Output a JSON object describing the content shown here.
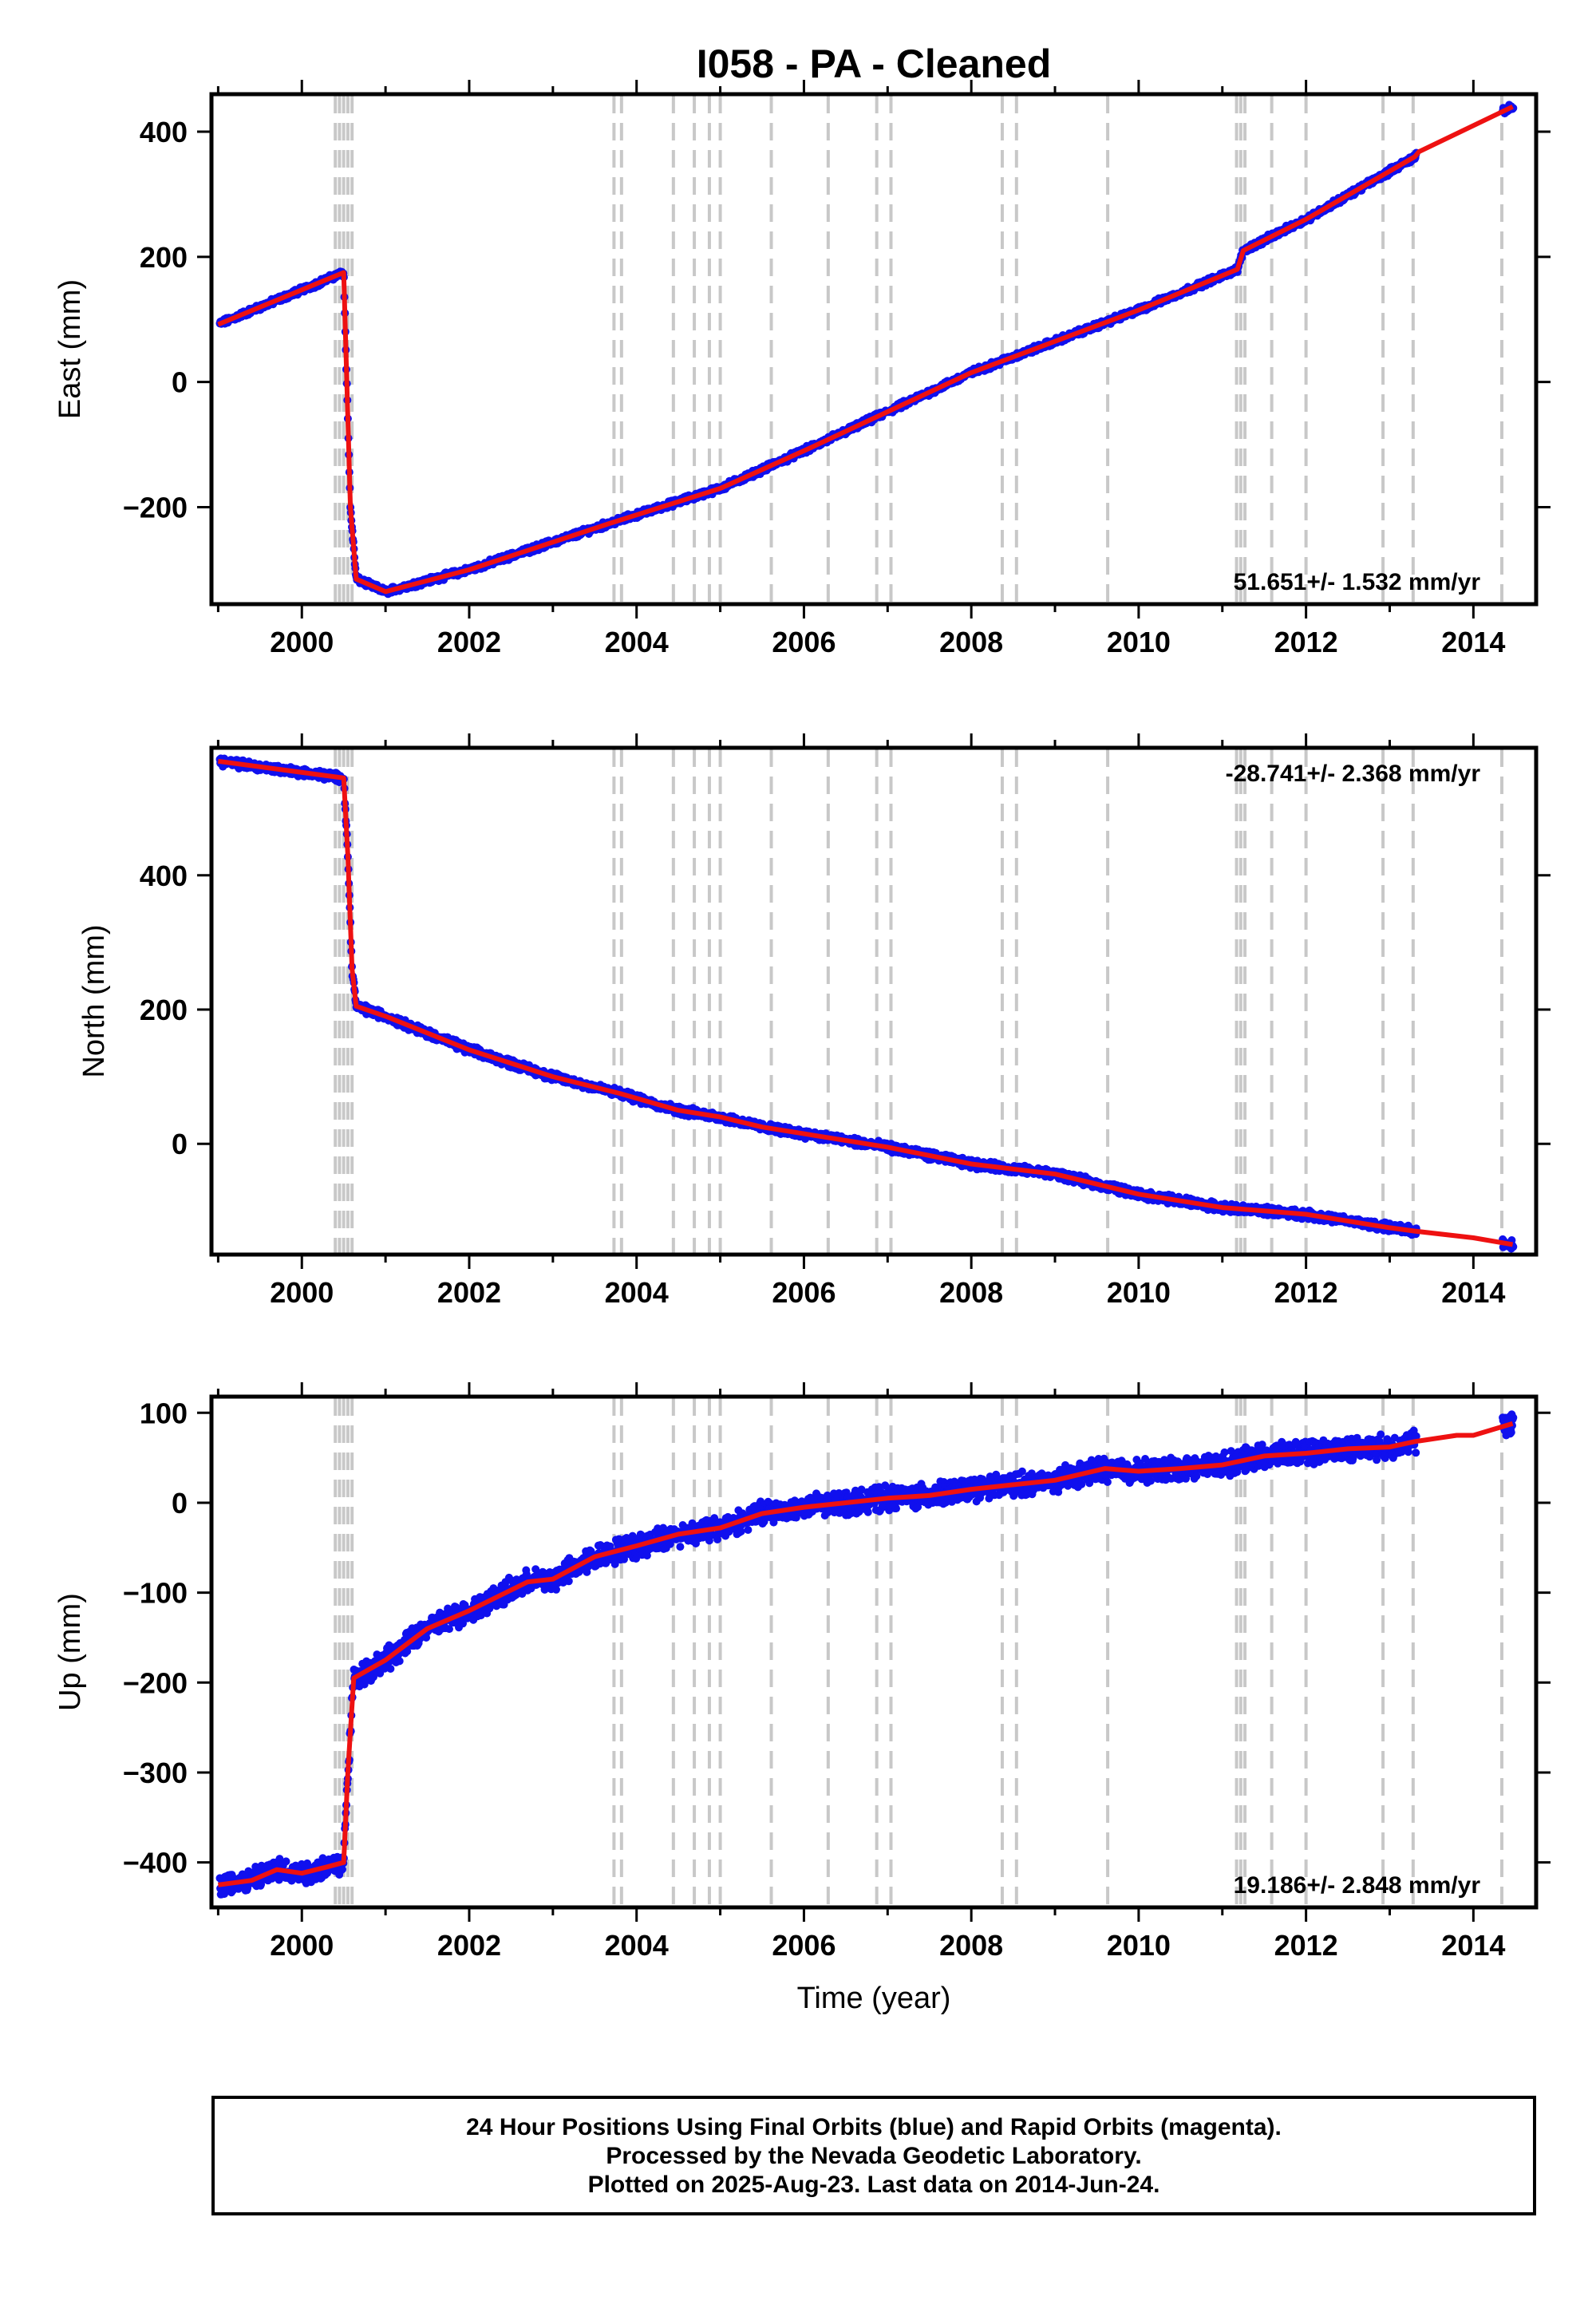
{
  "title": "I058  - PA - Cleaned",
  "x_axis_label": "Time (year)",
  "footer": {
    "line1": "24 Hour Positions Using Final Orbits (blue) and Rapid Orbits (magenta).",
    "line2": "Processed by the Nevada Geodetic Laboratory.",
    "line3": "Plotted on 2025-Aug-23. Last data on 2014-Jun-24."
  },
  "colors": {
    "data": "#1010ee",
    "model": "#ee1111",
    "steps": "#c8c8c8"
  },
  "chart_data": [
    {
      "type": "scatter",
      "panel": "east",
      "ylabel": "East (mm)",
      "rate_label": "51.651+/- 1.532 mm/yr",
      "xlim": [
        1998.92,
        2014.75
      ],
      "ylim": [
        -355,
        460
      ],
      "x_ticks": [
        2000,
        2002,
        2004,
        2006,
        2008,
        2010,
        2012,
        2014
      ],
      "y_ticks": [
        -200,
        0,
        200,
        400
      ],
      "model_line": [
        [
          1999.0,
          92
        ],
        [
          2000.5,
          175
        ],
        [
          2000.58,
          -200
        ],
        [
          2000.65,
          -315
        ],
        [
          2001.0,
          -335
        ],
        [
          2002.0,
          -300
        ],
        [
          2003.7,
          -225
        ],
        [
          2005.0,
          -170
        ],
        [
          2006.0,
          -110
        ],
        [
          2008.0,
          15
        ],
        [
          2010.0,
          115
        ],
        [
          2011.18,
          180
        ],
        [
          2011.25,
          210
        ],
        [
          2012.0,
          260
        ],
        [
          2013.3,
          360
        ],
        [
          2013.35,
          368
        ],
        [
          2014.47,
          440
        ]
      ],
      "steps": [
        2000.4,
        2000.45,
        2000.5,
        2000.55,
        2000.6,
        2003.73,
        2003.82,
        2004.44,
        2004.69,
        2004.87,
        2005.0,
        2005.61,
        2006.29,
        2006.87,
        2007.04,
        2008.37,
        2008.54,
        2009.63,
        2011.17,
        2011.22,
        2011.27,
        2011.59,
        2012.0,
        2012.92,
        2013.28,
        2014.34
      ]
    },
    {
      "type": "scatter",
      "panel": "north",
      "ylabel": "North (mm)",
      "rate_label": "-28.741+/- 2.368 mm/yr",
      "xlim": [
        1998.92,
        2014.75
      ],
      "ylim": [
        -165,
        590
      ],
      "x_ticks": [
        2000,
        2002,
        2004,
        2006,
        2008,
        2010,
        2012,
        2014
      ],
      "y_ticks": [
        0,
        200,
        400
      ],
      "model_line": [
        [
          1999.0,
          570
        ],
        [
          2000.5,
          545
        ],
        [
          2000.55,
          430
        ],
        [
          2000.6,
          260
        ],
        [
          2000.65,
          205
        ],
        [
          2001.0,
          190
        ],
        [
          2002.0,
          140
        ],
        [
          2003.0,
          100
        ],
        [
          2003.8,
          75
        ],
        [
          2004.5,
          50
        ],
        [
          2005.0,
          40
        ],
        [
          2005.5,
          25
        ],
        [
          2006.0,
          15
        ],
        [
          2007.0,
          -5
        ],
        [
          2008.0,
          -30
        ],
        [
          2009.0,
          -45
        ],
        [
          2010.0,
          -75
        ],
        [
          2011.0,
          -95
        ],
        [
          2011.5,
          -100
        ],
        [
          2012.0,
          -105
        ],
        [
          2013.0,
          -125
        ],
        [
          2013.3,
          -130
        ],
        [
          2014.0,
          -140
        ],
        [
          2014.47,
          -150
        ]
      ],
      "steps": [
        2000.4,
        2000.45,
        2000.5,
        2000.55,
        2000.6,
        2003.73,
        2003.82,
        2004.44,
        2004.69,
        2004.87,
        2005.0,
        2005.61,
        2006.29,
        2006.87,
        2007.04,
        2008.37,
        2008.54,
        2009.63,
        2011.17,
        2011.22,
        2011.27,
        2011.59,
        2012.0,
        2012.92,
        2013.28,
        2014.34
      ]
    },
    {
      "type": "scatter",
      "panel": "up",
      "ylabel": "Up (mm)",
      "rate_label": "19.186+/- 2.848 mm/yr",
      "xlim": [
        1998.92,
        2014.75
      ],
      "ylim": [
        -450,
        118
      ],
      "x_ticks": [
        2000,
        2002,
        2004,
        2006,
        2008,
        2010,
        2012,
        2014
      ],
      "y_ticks": [
        -400,
        -300,
        -200,
        -100,
        0,
        100
      ],
      "model_line": [
        [
          1999.0,
          -425
        ],
        [
          1999.4,
          -420
        ],
        [
          1999.7,
          -408
        ],
        [
          2000.0,
          -412
        ],
        [
          2000.3,
          -405
        ],
        [
          2000.5,
          -400
        ],
        [
          2000.55,
          -300
        ],
        [
          2000.62,
          -195
        ],
        [
          2001.0,
          -175
        ],
        [
          2001.5,
          -140
        ],
        [
          2002.0,
          -120
        ],
        [
          2002.7,
          -88
        ],
        [
          2003.0,
          -85
        ],
        [
          2003.5,
          -60
        ],
        [
          2004.0,
          -48
        ],
        [
          2004.5,
          -35
        ],
        [
          2005.0,
          -28
        ],
        [
          2005.5,
          -12
        ],
        [
          2006.0,
          -5
        ],
        [
          2006.5,
          0
        ],
        [
          2007.0,
          5
        ],
        [
          2007.5,
          8
        ],
        [
          2008.0,
          15
        ],
        [
          2008.5,
          20
        ],
        [
          2009.0,
          25
        ],
        [
          2009.6,
          38
        ],
        [
          2010.0,
          35
        ],
        [
          2010.5,
          38
        ],
        [
          2011.0,
          42
        ],
        [
          2011.5,
          52
        ],
        [
          2012.0,
          55
        ],
        [
          2012.5,
          60
        ],
        [
          2013.0,
          62
        ],
        [
          2013.3,
          68
        ],
        [
          2013.8,
          75
        ],
        [
          2014.0,
          75
        ],
        [
          2014.47,
          88
        ]
      ],
      "steps": [
        2000.4,
        2000.45,
        2000.5,
        2000.55,
        2000.6,
        2003.73,
        2003.82,
        2004.44,
        2004.69,
        2004.87,
        2005.0,
        2005.61,
        2006.29,
        2006.87,
        2007.04,
        2008.37,
        2008.54,
        2009.63,
        2011.17,
        2011.22,
        2011.27,
        2011.59,
        2012.0,
        2012.92,
        2013.28,
        2014.34
      ]
    }
  ]
}
